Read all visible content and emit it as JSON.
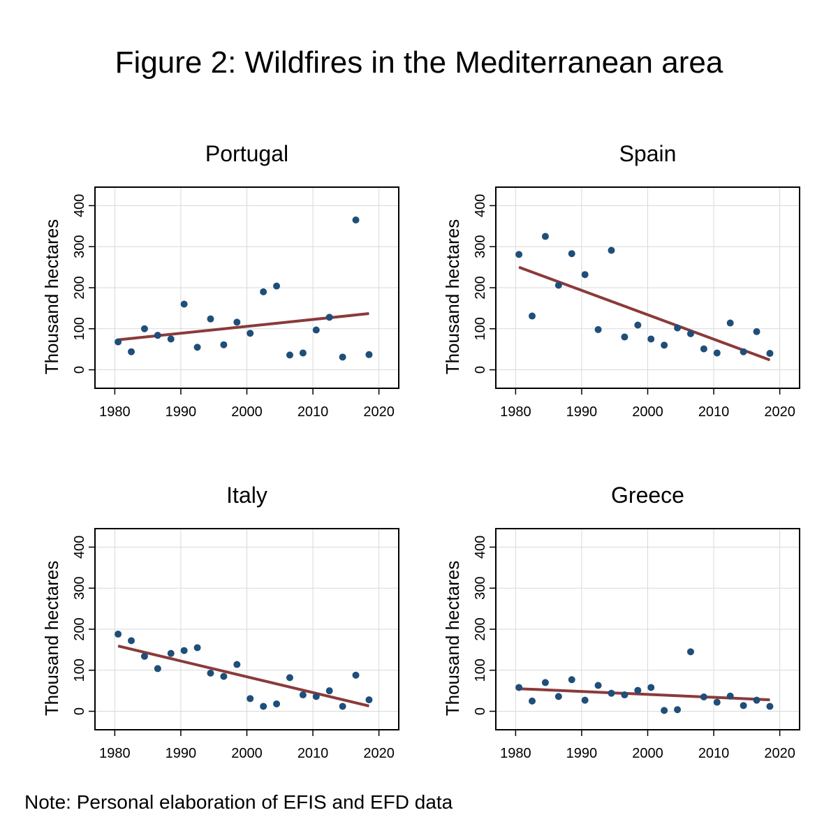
{
  "figure": {
    "title": "Figure 2: Wildfires in the Mediterranean area",
    "note": "Note: Personal elaboration of EFIS and EFD data"
  },
  "colors": {
    "points": "#1f4e79",
    "trend": "#8b3a3a",
    "grid": "#d9d9d9",
    "axis": "#000000"
  },
  "chart_data": [
    {
      "type": "scatter",
      "title": "Portugal",
      "xlabel": "",
      "ylabel": "Thousand hectares",
      "xlim": [
        1977,
        2023
      ],
      "ylim": [
        -45,
        445
      ],
      "xticks": [
        1980,
        1990,
        2000,
        2010,
        2020
      ],
      "yticks": [
        0,
        100,
        200,
        300,
        400
      ],
      "grid": true,
      "x": [
        1980.5,
        1982.5,
        1984.5,
        1986.5,
        1988.5,
        1990.5,
        1992.5,
        1994.5,
        1996.5,
        1998.5,
        2000.5,
        2002.5,
        2004.5,
        2006.5,
        2008.5,
        2010.5,
        2012.5,
        2014.5,
        2016.5,
        2018.5
      ],
      "y": [
        68,
        44,
        100,
        84,
        75,
        160,
        55,
        124,
        61,
        116,
        89,
        190,
        204,
        36,
        41,
        97,
        128,
        31,
        365,
        37
      ],
      "trend": {
        "x": [
          1980.5,
          2018.5
        ],
        "y": [
          73,
          137
        ]
      }
    },
    {
      "type": "scatter",
      "title": "Spain",
      "xlabel": "",
      "ylabel": "Thousand hectares",
      "xlim": [
        1977,
        2023
      ],
      "ylim": [
        -45,
        445
      ],
      "xticks": [
        1980,
        1990,
        2000,
        2010,
        2020
      ],
      "yticks": [
        0,
        100,
        200,
        300,
        400
      ],
      "grid": true,
      "x": [
        1980.5,
        1982.5,
        1984.5,
        1986.5,
        1988.5,
        1990.5,
        1992.5,
        1994.5,
        1996.5,
        1998.5,
        2000.5,
        2002.5,
        2004.5,
        2006.5,
        2008.5,
        2010.5,
        2012.5,
        2014.5,
        2016.5,
        2018.5
      ],
      "y": [
        281,
        131,
        325,
        206,
        283,
        232,
        98,
        291,
        80,
        109,
        75,
        60,
        102,
        88,
        51,
        41,
        114,
        44,
        93,
        40
      ],
      "trend": {
        "x": [
          1980.5,
          2018.5
        ],
        "y": [
          250,
          24
        ]
      }
    },
    {
      "type": "scatter",
      "title": "Italy",
      "xlabel": "",
      "ylabel": "Thousand hectares",
      "xlim": [
        1977,
        2023
      ],
      "ylim": [
        -45,
        445
      ],
      "xticks": [
        1980,
        1990,
        2000,
        2010,
        2020
      ],
      "yticks": [
        0,
        100,
        200,
        300,
        400
      ],
      "grid": true,
      "x": [
        1980.5,
        1982.5,
        1984.5,
        1986.5,
        1988.5,
        1990.5,
        1992.5,
        1994.5,
        1996.5,
        1998.5,
        2000.5,
        2002.5,
        2004.5,
        2006.5,
        2008.5,
        2010.5,
        2012.5,
        2014.5,
        2016.5,
        2018.5
      ],
      "y": [
        188,
        172,
        134,
        104,
        141,
        148,
        155,
        93,
        85,
        114,
        31,
        12,
        18,
        82,
        40,
        36,
        50,
        12,
        88,
        28
      ],
      "trend": {
        "x": [
          1980.5,
          2018.5
        ],
        "y": [
          159,
          13
        ]
      }
    },
    {
      "type": "scatter",
      "title": "Greece",
      "xlabel": "",
      "ylabel": "Thousand hectares",
      "xlim": [
        1977,
        2023
      ],
      "ylim": [
        -45,
        445
      ],
      "xticks": [
        1980,
        1990,
        2000,
        2010,
        2020
      ],
      "yticks": [
        0,
        100,
        200,
        300,
        400
      ],
      "grid": true,
      "x": [
        1980.5,
        1982.5,
        1984.5,
        1986.5,
        1988.5,
        1990.5,
        1992.5,
        1994.5,
        1996.5,
        1998.5,
        2000.5,
        2002.5,
        2004.5,
        2006.5,
        2008.5,
        2010.5,
        2012.5,
        2014.5,
        2016.5,
        2018.5
      ],
      "y": [
        58,
        25,
        70,
        36,
        77,
        27,
        63,
        44,
        40,
        51,
        58,
        2,
        4,
        145,
        35,
        22,
        37,
        14,
        27,
        12
      ],
      "trend": {
        "x": [
          1980.5,
          2018.5
        ],
        "y": [
          55,
          28
        ]
      }
    }
  ]
}
